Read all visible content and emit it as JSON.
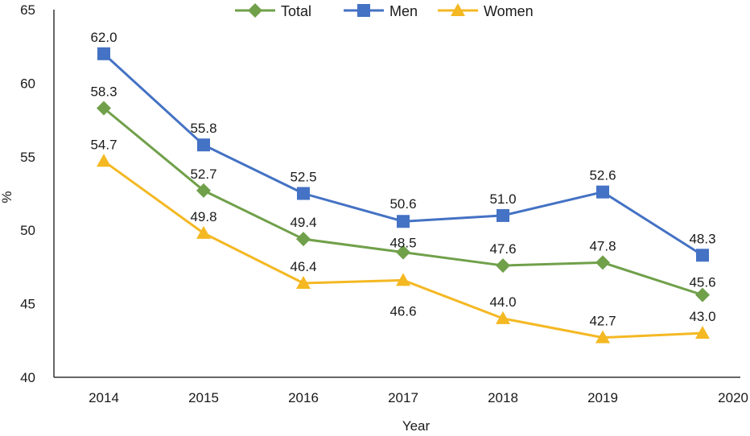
{
  "chart_data": {
    "type": "line",
    "title": "",
    "xlabel": "Year",
    "ylabel": "%",
    "ylim": [
      40,
      65
    ],
    "yticks": [
      40,
      45,
      50,
      55,
      60,
      65
    ],
    "categories": [
      "2014",
      "2015",
      "2016",
      "2017",
      "2018",
      "2019",
      "2020"
    ],
    "legend_position": "top",
    "grid": false,
    "series": [
      {
        "name": "Total",
        "color": "#70a04a",
        "marker": "diamond",
        "values": [
          58.3,
          52.7,
          49.4,
          48.5,
          47.6,
          47.8,
          45.6
        ],
        "labels": [
          "58.3",
          "52.7",
          "49.4",
          "48.5",
          "47.6",
          "47.8",
          "45.6"
        ]
      },
      {
        "name": "Men",
        "color": "#4472c4",
        "marker": "square",
        "values": [
          62.0,
          55.8,
          52.5,
          50.6,
          51.0,
          52.6,
          48.3
        ],
        "labels": [
          "62.0",
          "55.8",
          "52.5",
          "50.6",
          "51.0",
          "52.6",
          "48.3"
        ]
      },
      {
        "name": "Women",
        "color": "#f4b823",
        "marker": "triangle",
        "values": [
          54.7,
          49.8,
          46.4,
          46.6,
          44.0,
          42.7,
          43.0
        ],
        "labels": [
          "54.7",
          "49.8",
          "46.4",
          "46.6",
          "44.0",
          "42.7",
          "43.0"
        ]
      }
    ]
  }
}
